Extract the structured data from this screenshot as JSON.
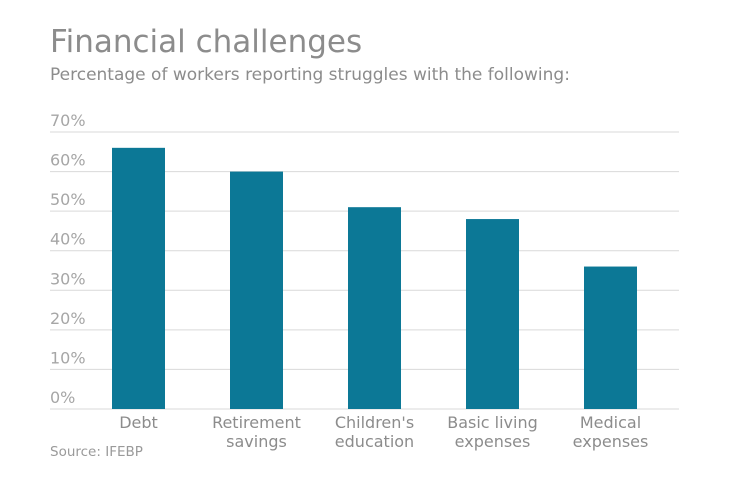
{
  "chart_data": {
    "type": "bar",
    "title": "Financial challenges",
    "subtitle": "Percentage of workers reporting struggles with the following:",
    "source": "Source: IFEBP",
    "categories": [
      [
        "Debt"
      ],
      [
        "Retirement",
        "savings"
      ],
      [
        "Children's",
        "education"
      ],
      [
        "Basic living",
        "expenses"
      ],
      [
        "Medical",
        "expenses"
      ]
    ],
    "values": [
      66,
      60,
      51,
      48,
      36
    ],
    "unit": "%",
    "ylim": [
      0,
      70
    ],
    "yticks": [
      "0%",
      "10%",
      "20%",
      "30%",
      "40%",
      "50%",
      "60%",
      "70%"
    ],
    "grid": true,
    "legend": "none",
    "colors": {
      "bar": "#0c7896",
      "title": "#8c8c8c",
      "subtitle": "#8c8c8c",
      "tick_label": "#a6a6a6",
      "category_label": "#8c8c8c",
      "source": "#9a9a9a",
      "grid": "#d9d9d9"
    }
  }
}
